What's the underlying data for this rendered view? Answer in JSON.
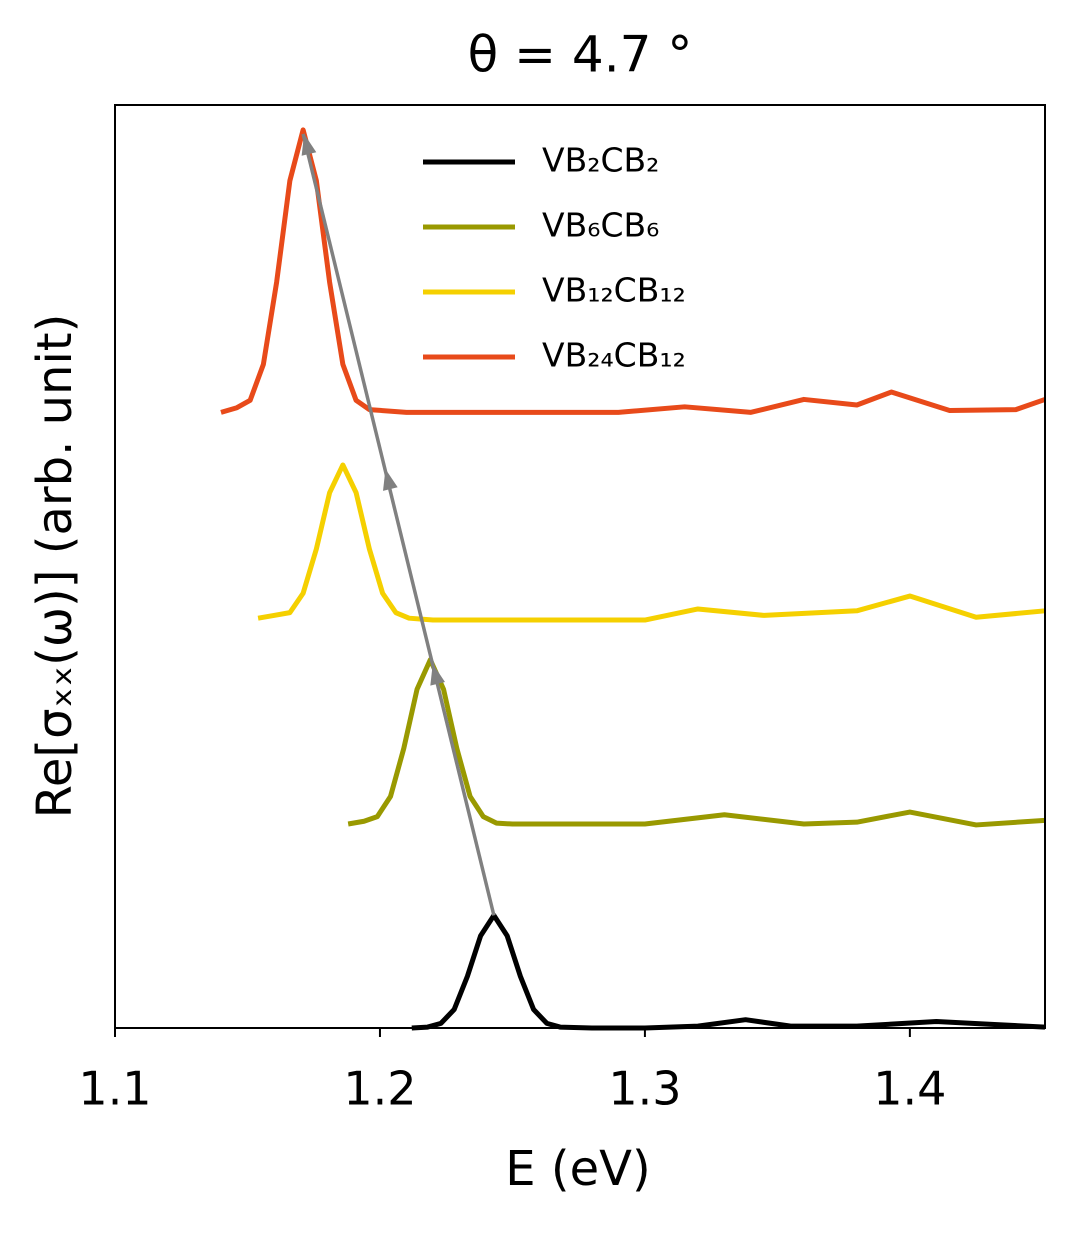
{
  "chart_data": {
    "type": "line",
    "title": "θ = 4.7 °",
    "x_label": "E (eV)",
    "y_label": "Re[σₓₓ(ω)] (arb. unit)",
    "xlim": [
      1.1,
      1.451
    ],
    "xticks": [
      1.1,
      1.2,
      1.3,
      1.4
    ],
    "ylim": [
      0,
      10
    ],
    "legend": "upper center",
    "series": [
      {
        "name": "VB₂CB₂",
        "color": "#000000",
        "x": [
          1.212,
          1.218,
          1.223,
          1.228,
          1.233,
          1.238,
          1.243,
          1.248,
          1.253,
          1.258,
          1.263,
          1.268,
          1.28,
          1.3,
          1.32,
          1.338,
          1.355,
          1.38,
          1.41,
          1.43,
          1.451
        ],
        "values": [
          0,
          0.01,
          0.05,
          0.2,
          0.56,
          1.0,
          1.22,
          1.0,
          0.56,
          0.2,
          0.05,
          0.01,
          0,
          0,
          0.02,
          0.09,
          0.02,
          0.02,
          0.07,
          0.04,
          0.01
        ]
      },
      {
        "name": "VB₆CB₆",
        "color": "#999900",
        "x": [
          1.188,
          1.194,
          1.199,
          1.204,
          1.209,
          1.214,
          1.219,
          1.224,
          1.229,
          1.234,
          1.239,
          1.244,
          1.25,
          1.3,
          1.33,
          1.36,
          1.38,
          1.4,
          1.425,
          1.451
        ],
        "values": [
          2.21,
          2.24,
          2.29,
          2.51,
          3.03,
          3.67,
          3.99,
          3.67,
          3.03,
          2.51,
          2.29,
          2.22,
          2.21,
          2.21,
          2.31,
          2.21,
          2.23,
          2.34,
          2.2,
          2.25
        ]
      },
      {
        "name": "VB₁₂CB₁₂",
        "color": "#f5d000",
        "x": [
          1.154,
          1.16,
          1.166,
          1.171,
          1.176,
          1.181,
          1.186,
          1.191,
          1.196,
          1.201,
          1.206,
          1.211,
          1.22,
          1.3,
          1.32,
          1.345,
          1.38,
          1.4,
          1.425,
          1.451
        ],
        "values": [
          4.44,
          4.47,
          4.5,
          4.71,
          5.19,
          5.8,
          6.1,
          5.8,
          5.19,
          4.71,
          4.5,
          4.44,
          4.42,
          4.42,
          4.54,
          4.47,
          4.52,
          4.68,
          4.45,
          4.52
        ]
      },
      {
        "name": "VB₂₄CB₁₂",
        "color": "#e84a1a",
        "x": [
          1.14,
          1.146,
          1.151,
          1.156,
          1.161,
          1.166,
          1.171,
          1.176,
          1.181,
          1.186,
          1.191,
          1.196,
          1.21,
          1.29,
          1.315,
          1.34,
          1.36,
          1.38,
          1.393,
          1.415,
          1.44,
          1.451
        ],
        "values": [
          6.67,
          6.72,
          6.8,
          7.19,
          8.08,
          9.18,
          9.73,
          9.18,
          8.08,
          7.19,
          6.8,
          6.7,
          6.67,
          6.67,
          6.73,
          6.67,
          6.81,
          6.75,
          6.89,
          6.69,
          6.7,
          6.81
        ]
      }
    ]
  }
}
